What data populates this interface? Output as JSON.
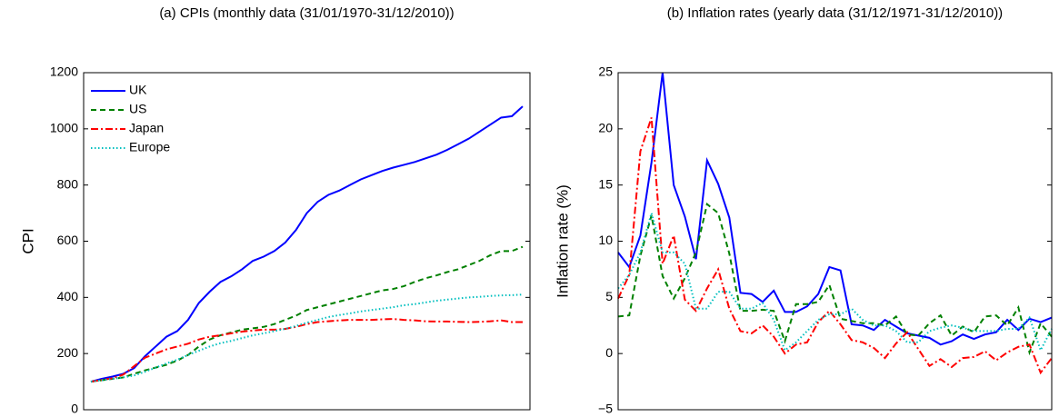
{
  "chart_data": [
    {
      "type": "line",
      "title": "(a) CPIs (monthly data (31/01/1970-31/12/2010))",
      "ylabel": "CPI",
      "ylim": [
        0,
        1200
      ],
      "yticks": [
        0,
        200,
        400,
        600,
        800,
        1000,
        1200
      ],
      "legend": "upper left",
      "series": [
        {
          "name": "UK",
          "color": "#0000ff",
          "style": "solid",
          "values": [
            100,
            110,
            118,
            128,
            148,
            190,
            225,
            260,
            280,
            320,
            380,
            420,
            455,
            475,
            500,
            530,
            545,
            565,
            595,
            640,
            700,
            740,
            765,
            780,
            800,
            820,
            835,
            850,
            862,
            872,
            882,
            895,
            908,
            925,
            945,
            965,
            990,
            1015,
            1040,
            1045,
            1080
          ]
        },
        {
          "name": "US",
          "color": "#008000",
          "style": "dashed",
          "values": [
            100,
            105,
            110,
            115,
            128,
            140,
            150,
            160,
            175,
            195,
            225,
            250,
            265,
            275,
            285,
            290,
            295,
            305,
            320,
            335,
            355,
            365,
            375,
            385,
            395,
            405,
            415,
            425,
            430,
            440,
            455,
            468,
            478,
            490,
            500,
            515,
            530,
            550,
            565,
            565,
            580
          ]
        },
        {
          "name": "Japan",
          "color": "#ff0000",
          "style": "dashdot",
          "values": [
            100,
            106,
            112,
            125,
            155,
            185,
            200,
            215,
            225,
            235,
            250,
            260,
            265,
            272,
            278,
            282,
            285,
            285,
            288,
            295,
            305,
            312,
            315,
            318,
            320,
            320,
            320,
            322,
            323,
            320,
            318,
            315,
            314,
            314,
            313,
            312,
            313,
            315,
            318,
            312,
            312
          ]
        },
        {
          "name": "Europe",
          "color": "#00bfbf",
          "style": "dotted",
          "values": [
            100,
            105,
            110,
            115,
            122,
            135,
            150,
            165,
            178,
            195,
            210,
            225,
            237,
            245,
            255,
            265,
            272,
            280,
            288,
            298,
            310,
            320,
            330,
            337,
            343,
            350,
            355,
            360,
            365,
            372,
            376,
            382,
            388,
            392,
            396,
            400,
            402,
            405,
            407,
            408,
            410
          ]
        }
      ]
    },
    {
      "type": "line",
      "title": "(b) Inflation rates (yearly data (31/12/1971-31/12/2010))",
      "ylabel": "Inflation rate (%)",
      "ylim": [
        -5,
        25
      ],
      "yticks": [
        {
          "value": -5,
          "label": "−5"
        },
        0,
        5,
        10,
        15,
        20,
        25
      ],
      "series": [
        {
          "color": "#0000ff",
          "style": "solid",
          "values": [
            9,
            7.7,
            10.5,
            17,
            25,
            15,
            12.2,
            8.4,
            17.2,
            15.1,
            12.1,
            5.4,
            5.3,
            4.6,
            5.6,
            3.7,
            3.7,
            4.2,
            5.3,
            7.7,
            7.4,
            2.6,
            2.5,
            2.1,
            3,
            2.4,
            1.8,
            1.6,
            1.4,
            0.8,
            1.1,
            1.7,
            1.3,
            1.7,
            1.9,
            3,
            2.1,
            3.1,
            2.8,
            3.2
          ]
        },
        {
          "color": "#008000",
          "style": "dashed",
          "values": [
            3.3,
            3.4,
            8.7,
            12.3,
            6.9,
            4.9,
            6.7,
            9,
            13.3,
            12.5,
            8.9,
            3.8,
            3.8,
            3.9,
            3.8,
            1.1,
            4.4,
            4.4,
            4.6,
            6.1,
            3.1,
            2.9,
            2.7,
            2.7,
            2.5,
            3.3,
            1.7,
            1.6,
            2.7,
            3.4,
            1.6,
            2.4,
            1.9,
            3.3,
            3.4,
            2.5,
            4.1,
            0.1,
            2.7,
            1.5
          ]
        },
        {
          "color": "#ff0000",
          "style": "dashdot",
          "values": [
            4.9,
            7,
            18,
            21,
            8,
            10.5,
            4.8,
            3.8,
            5.8,
            7.5,
            4,
            2,
            1.8,
            2.5,
            1.5,
            0,
            0.8,
            1,
            2.8,
            3.8,
            2.6,
            1.2,
            1,
            0.5,
            -0.4,
            0.9,
            1.9,
            0.4,
            -1.1,
            -0.5,
            -1.2,
            -0.4,
            -0.3,
            0.2,
            -0.6,
            0.1,
            0.6,
            0.8,
            -1.7,
            -0.4
          ]
        },
        {
          "color": "#00bfbf",
          "style": "dotted",
          "values": [
            5.8,
            7,
            9,
            12.5,
            9,
            9,
            8,
            4,
            4,
            5.5,
            5.5,
            4,
            4,
            4.5,
            3,
            0.3,
            1,
            2,
            3,
            3.5,
            3.5,
            4,
            3,
            2.5,
            2.5,
            2,
            1,
            1,
            2,
            2.3,
            2.5,
            2.3,
            2,
            2,
            2,
            2.2,
            2.2,
            3.2,
            0.3,
            2.2
          ]
        }
      ]
    }
  ]
}
